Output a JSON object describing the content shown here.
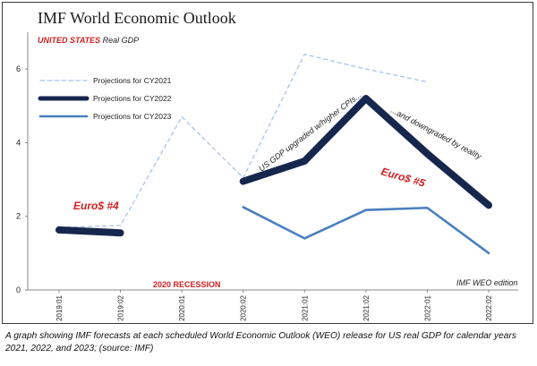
{
  "chart_data": {
    "type": "line",
    "title": "IMF World Economic Outlook",
    "subtitle_country": "UNITED STATES",
    "subtitle_rest": " Real GDP",
    "x": [
      "2019:01",
      "2019:02",
      "2020:01",
      "2020:02",
      "2021:01",
      "2021:02",
      "2022:01",
      "2022:02"
    ],
    "ylim": [
      0,
      7
    ],
    "yticks": [
      0,
      2,
      4,
      6
    ],
    "grid": false,
    "legend_position": "top-left",
    "series": [
      {
        "name": "Projections for CY2021",
        "color": "#a9c4e6",
        "style": "dashed",
        "values": [
          1.7,
          1.75,
          4.7,
          3.05,
          6.4,
          6.0,
          5.65,
          null
        ]
      },
      {
        "name": "Projections for CY2022",
        "color": "#16274e",
        "style": "thick",
        "values": [
          1.63,
          1.55,
          null,
          2.95,
          3.5,
          5.2,
          3.7,
          2.3
        ]
      },
      {
        "name": "Projections for CY2023",
        "color": "#4a7fbe",
        "style": "solid",
        "values": [
          null,
          null,
          null,
          2.25,
          1.4,
          2.17,
          2.23,
          1.0
        ]
      }
    ],
    "annotations": {
      "euro4": "Euro$ #4",
      "euro5": "Euro$ #5",
      "upgrade": "US GDP upgraded w/higher CPIs...",
      "downgrade": "...and downgraded by reality",
      "recession": "2020 RECESSION",
      "edition": "IMF WEO edition"
    }
  },
  "caption": "A graph showing IMF forecasts at each scheduled World Economic Outlook (WEO) release for US real GDP for calendar years 2021, 2022, and 2023; (source: IMF)"
}
